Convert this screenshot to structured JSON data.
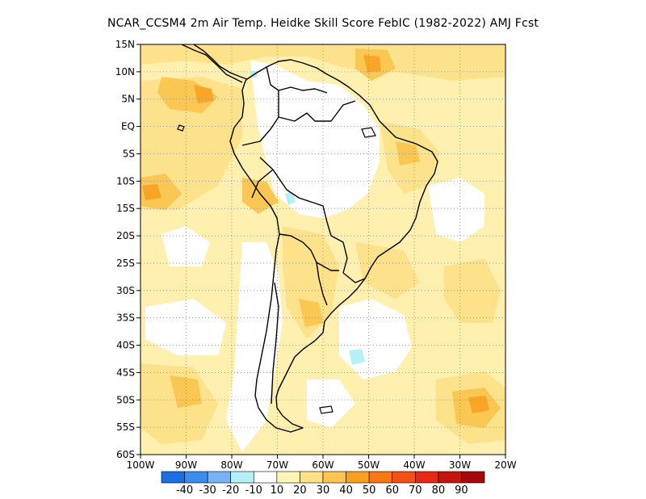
{
  "title": "NCAR_CCSM4  2m Air Temp. Heidke Skill Score FebIC (1982-2022) AMJ Fcst",
  "map": {
    "lon_range": [
      -100,
      -20
    ],
    "lat_range": [
      -60,
      15
    ],
    "lat_ticks": [
      {
        "value": 15,
        "label": "15N"
      },
      {
        "value": 10,
        "label": "10N"
      },
      {
        "value": 5,
        "label": "5N"
      },
      {
        "value": 0,
        "label": "EQ"
      },
      {
        "value": -5,
        "label": "5S"
      },
      {
        "value": -10,
        "label": "10S"
      },
      {
        "value": -15,
        "label": "15S"
      },
      {
        "value": -20,
        "label": "20S"
      },
      {
        "value": -25,
        "label": "25S"
      },
      {
        "value": -30,
        "label": "30S"
      },
      {
        "value": -35,
        "label": "35S"
      },
      {
        "value": -40,
        "label": "40S"
      },
      {
        "value": -45,
        "label": "45S"
      },
      {
        "value": -50,
        "label": "50S"
      },
      {
        "value": -55,
        "label": "55S"
      },
      {
        "value": -60,
        "label": "60S"
      }
    ],
    "lon_ticks": [
      {
        "value": -100,
        "label": "100W"
      },
      {
        "value": -90,
        "label": "90W"
      },
      {
        "value": -80,
        "label": "80W"
      },
      {
        "value": -70,
        "label": "70W"
      },
      {
        "value": -60,
        "label": "60W"
      },
      {
        "value": -50,
        "label": "50W"
      },
      {
        "value": -40,
        "label": "40W"
      },
      {
        "value": -30,
        "label": "30W"
      },
      {
        "value": -20,
        "label": "20W"
      }
    ],
    "grid": "dotted",
    "field_description": "Heidke Skill Score shading over South America and adjacent oceans"
  },
  "colorbar": {
    "labels": [
      "-40",
      "-30",
      "-20",
      "-10",
      "10",
      "20",
      "30",
      "40",
      "50",
      "60",
      "70",
      "80",
      "90"
    ],
    "colors": [
      "#1a6fe3",
      "#3c8cf0",
      "#78b4f5",
      "#b4f0f5",
      "#ffffff",
      "#fff5b4",
      "#fde088",
      "#fbc550",
      "#f8a020",
      "#f57814",
      "#f55014",
      "#e62814",
      "#c31410",
      "#a50a0a"
    ]
  }
}
